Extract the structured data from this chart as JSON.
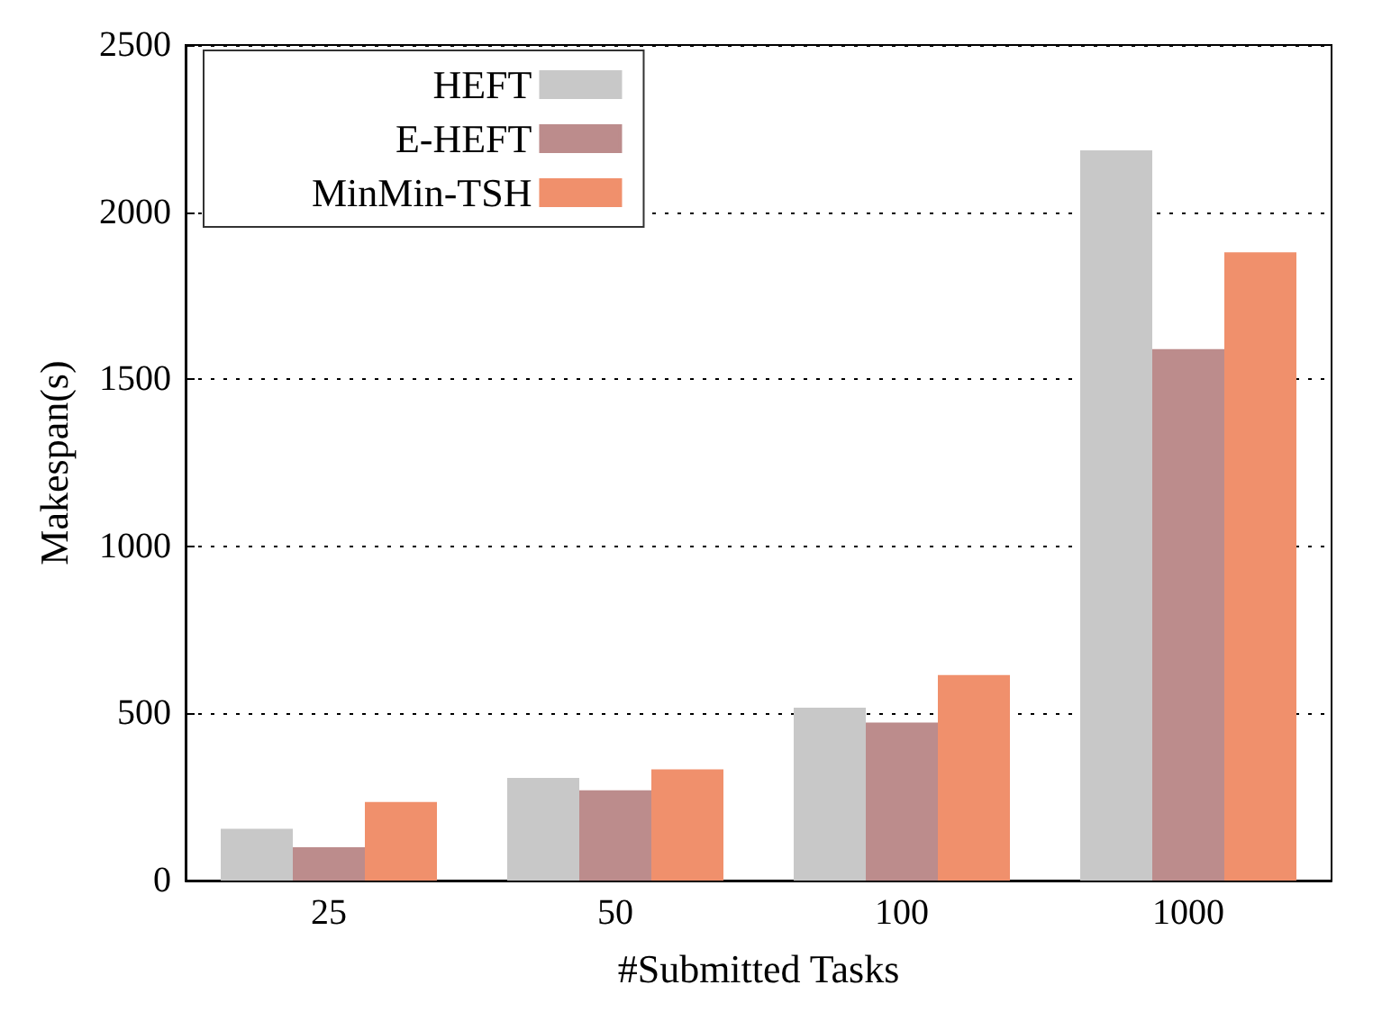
{
  "chart_data": {
    "type": "bar",
    "xlabel": "#Submitted Tasks",
    "ylabel": "Makespan(s)",
    "categories": [
      "25",
      "50",
      "100",
      "1000"
    ],
    "series": [
      {
        "name": "HEFT",
        "color": "#c8c8c8",
        "values": [
          155,
          307,
          517,
          2185
        ]
      },
      {
        "name": "E-HEFT",
        "color": "#bc8c8c",
        "values": [
          100,
          270,
          473,
          1590
        ]
      },
      {
        "name": "MinMin-TSH",
        "color": "#f0906c",
        "values": [
          235,
          333,
          615,
          1880
        ]
      }
    ],
    "ylim": [
      0,
      2500
    ],
    "yticks": [
      0,
      500,
      1000,
      1500,
      2000,
      2500
    ],
    "grid": "y",
    "legend": "top left"
  }
}
